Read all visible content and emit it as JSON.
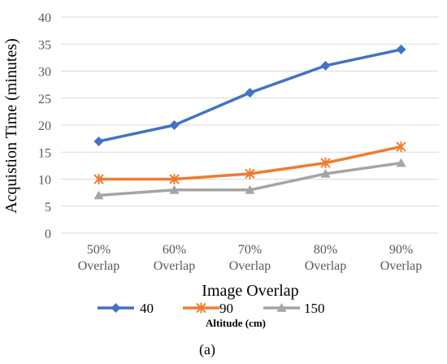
{
  "chart_data": {
    "type": "line",
    "categories": [
      "50% Overlap",
      "60% Overlap",
      "70% Overlap",
      "80% Overlap",
      "90% Overlap"
    ],
    "category_lines": [
      [
        "50%",
        "Overlap"
      ],
      [
        "60%",
        "Overlap"
      ],
      [
        "70%",
        "Overlap"
      ],
      [
        "80%",
        "Overlap"
      ],
      [
        "90%",
        "Overlap"
      ]
    ],
    "series": [
      {
        "name": "40",
        "values": [
          17,
          20,
          26,
          31,
          34
        ],
        "color": "#4472C4",
        "marker": "diamond"
      },
      {
        "name": "90",
        "values": [
          10,
          10,
          11,
          13,
          16
        ],
        "color": "#ED7D31",
        "marker": "asterisk"
      },
      {
        "name": "150",
        "values": [
          7,
          8,
          8,
          11,
          13
        ],
        "color": "#A5A5A5",
        "marker": "triangle"
      }
    ],
    "xlabel": "Image Overlap",
    "ylabel": "Acquistion Time (minutes)",
    "ylim": [
      0,
      40
    ],
    "yticks": [
      0,
      5,
      10,
      15,
      20,
      25,
      30,
      35,
      40
    ],
    "legend_title": "Altitude (cm)",
    "legend_position": "bottom",
    "grid": true,
    "gridline_color": "#D9D9D9"
  },
  "caption": "(a)"
}
